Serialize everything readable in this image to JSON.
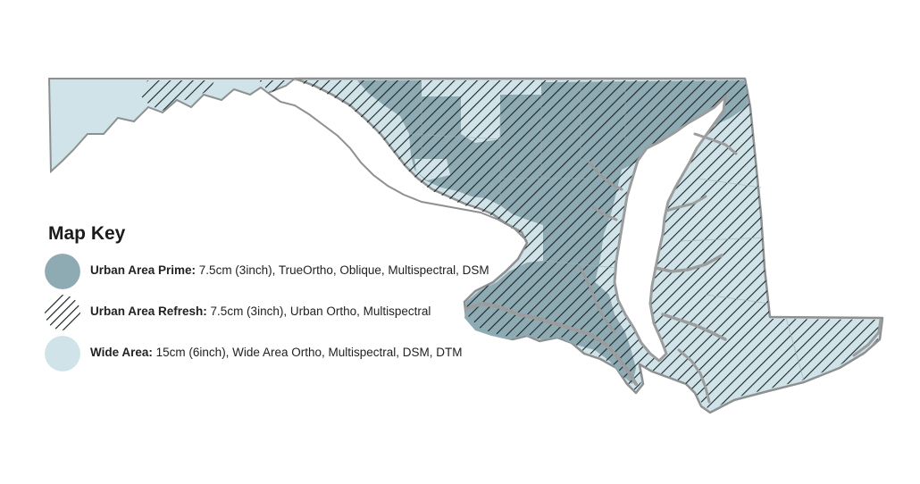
{
  "legend": {
    "title": "Map Key",
    "items": [
      {
        "label": "Urban Area Prime:",
        "description": " 7.5cm (3inch), TrueOrtho, Oblique, Multispectral, DSM",
        "swatch": "solid",
        "color": "#8eaab3"
      },
      {
        "label": "Urban Area Refresh:",
        "description": " 7.5cm (3inch), Urban Ortho, Multispectral",
        "swatch": "hatch",
        "color": "#1d2426"
      },
      {
        "label": "Wide Area:",
        "description": " 15cm (6inch), Wide Area Ortho, Multispectral, DSM, DTM",
        "swatch": "solid",
        "color": "#cfe3e8"
      }
    ]
  },
  "colors": {
    "prime": "#8eaab3",
    "wide": "#cfe3e8",
    "hatch": "#1d2426",
    "border": "#8d9091",
    "coast": "#9a9c9d"
  }
}
